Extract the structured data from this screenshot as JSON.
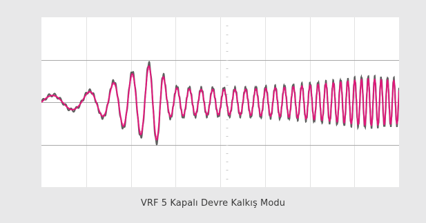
{
  "caption": "VRF 5 Kapalı Devre Kalkış Modu",
  "colors": {
    "background": "#e8e8e9",
    "plot_background": "#ffffff",
    "grid_major": "#a9a9a9",
    "grid_minor": "#e2e2e2",
    "signal_primary": "#e0197a",
    "signal_envelope": "#2a2a2a"
  },
  "chart_data": {
    "type": "line",
    "title": "",
    "xlabel": "",
    "ylabel": "",
    "xlim": [
      0,
      8
    ],
    "ylim": [
      -2,
      2
    ],
    "grid": true,
    "x_divisions": 8,
    "y_divisions": 4,
    "tick_labels": "none",
    "series": [
      {
        "name": "",
        "description_points": [
          {
            "x": 0.0,
            "amplitude": 0.15,
            "cycles_per_div": 1.0
          },
          {
            "x": 0.8,
            "amplitude": 0.18,
            "cycles_per_div": 1.2
          },
          {
            "x": 1.3,
            "amplitude": 0.3,
            "cycles_per_div": 1.8
          },
          {
            "x": 1.8,
            "amplitude": 0.55,
            "cycles_per_div": 2.4
          },
          {
            "x": 2.4,
            "amplitude": 0.85,
            "cycles_per_div": 2.8
          },
          {
            "x": 2.65,
            "amplitude": 0.9,
            "cycles_per_div": 3.0
          },
          {
            "x": 2.8,
            "amplitude": 0.35,
            "cycles_per_div": 3.4
          },
          {
            "x": 3.5,
            "amplitude": 0.3,
            "cycles_per_div": 3.8
          },
          {
            "x": 4.5,
            "amplitude": 0.3,
            "cycles_per_div": 4.2
          },
          {
            "x": 5.5,
            "amplitude": 0.35,
            "cycles_per_div": 5.0
          },
          {
            "x": 6.5,
            "amplitude": 0.45,
            "cycles_per_div": 6.0
          },
          {
            "x": 7.3,
            "amplitude": 0.55,
            "cycles_per_div": 6.8
          },
          {
            "x": 8.0,
            "amplitude": 0.5,
            "cycles_per_div": 7.2
          }
        ]
      }
    ]
  }
}
